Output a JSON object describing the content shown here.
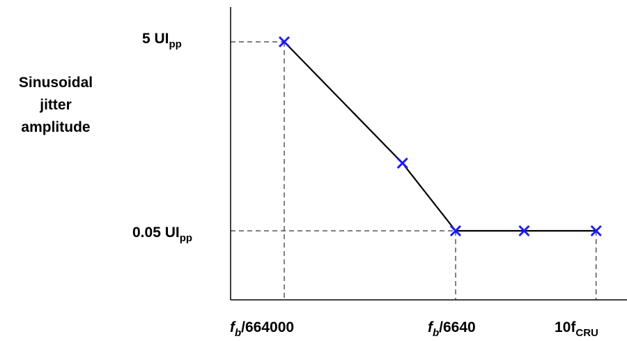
{
  "chart_data": {
    "type": "line",
    "ylabel_lines": [
      "Sinusoidal",
      "jitter",
      "amplitude"
    ],
    "y_ticks": [
      {
        "main": "5 UI",
        "sub": "pp",
        "value": 5
      },
      {
        "main": "0.05 UI",
        "sub": "pp",
        "value": 0.05
      }
    ],
    "x_ticks": [
      {
        "italic": "f",
        "sub": "b",
        "rest": "/664000"
      },
      {
        "italic": "f",
        "sub": "b",
        "rest": "/6640"
      },
      {
        "italic": "",
        "sub": "CRU",
        "rest": "10f"
      }
    ],
    "y_scale": "log",
    "points": [
      {
        "x": 0.0,
        "y": 5
      },
      {
        "x": 0.69,
        "y": 0.26
      },
      {
        "x": 1.0,
        "y": 0.05
      },
      {
        "x": 1.4,
        "y": 0.05
      },
      {
        "x": 1.82,
        "y": 0.05
      }
    ],
    "marker": "x",
    "marker_color": "#1a1aff",
    "line_color": "#000000",
    "guide_lines": "dashed"
  }
}
